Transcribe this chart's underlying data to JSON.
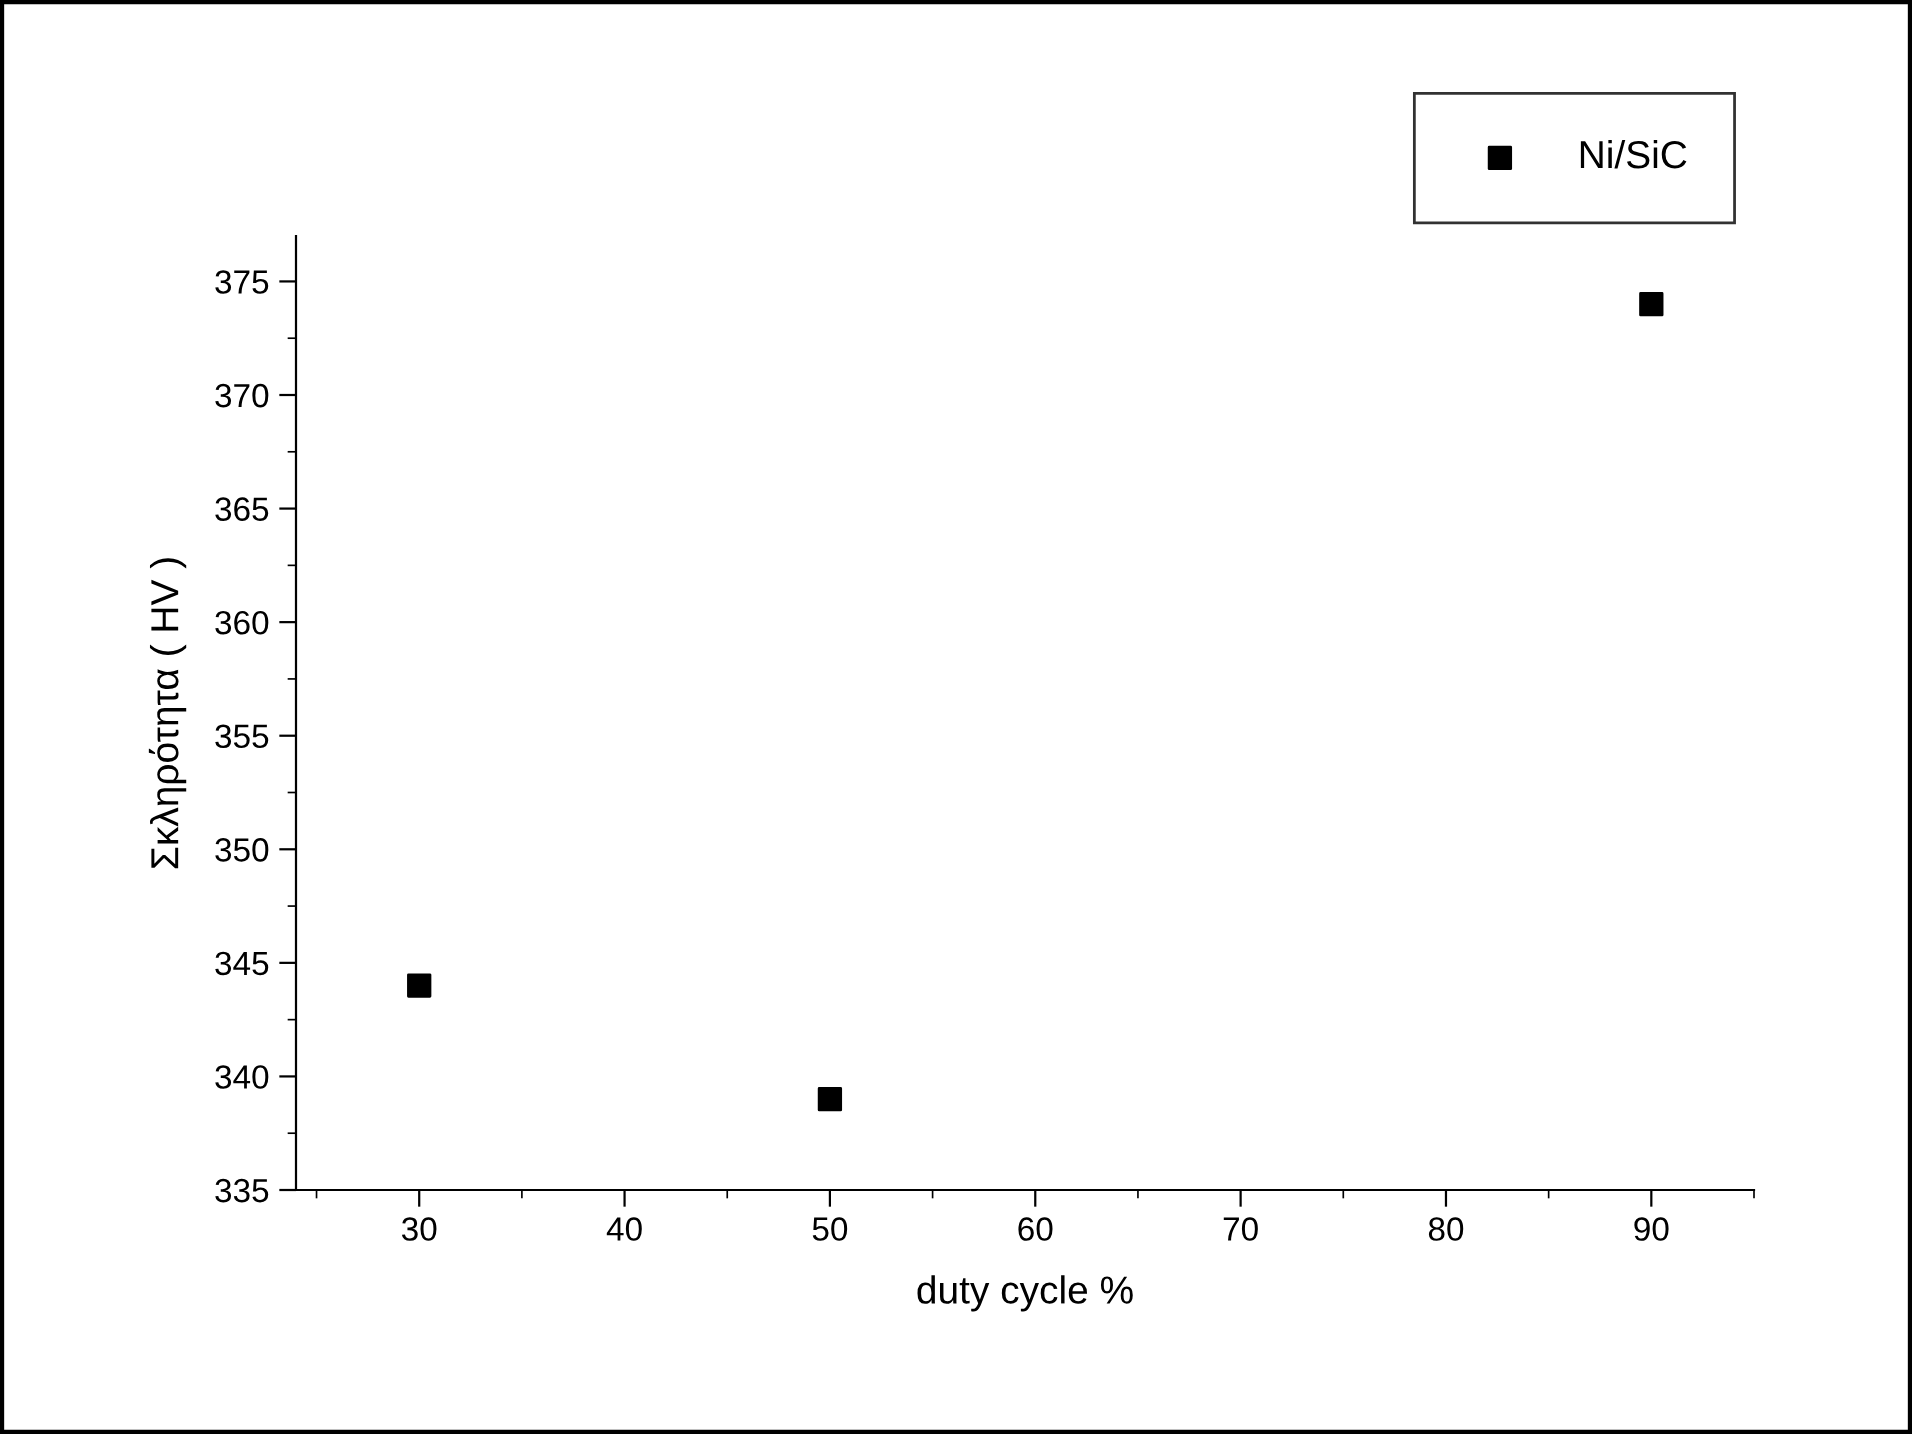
{
  "chart_data": {
    "type": "scatter",
    "xlabel": "duty cycle %",
    "ylabel": "Σκληρότητα ( HV )",
    "x": [
      30,
      50,
      90
    ],
    "series": [
      {
        "name": "Ni/SiC",
        "color": "#000000",
        "values": [
          344,
          339,
          374
        ]
      }
    ],
    "xlim": [
      24,
      95
    ],
    "xticks": [
      30,
      40,
      50,
      60,
      70,
      80,
      90
    ],
    "ylim": [
      335,
      377
    ],
    "yticks": [
      335,
      340,
      345,
      350,
      355,
      360,
      365,
      370,
      375
    ],
    "marker": "square",
    "legend": "top right",
    "grid": false
  }
}
